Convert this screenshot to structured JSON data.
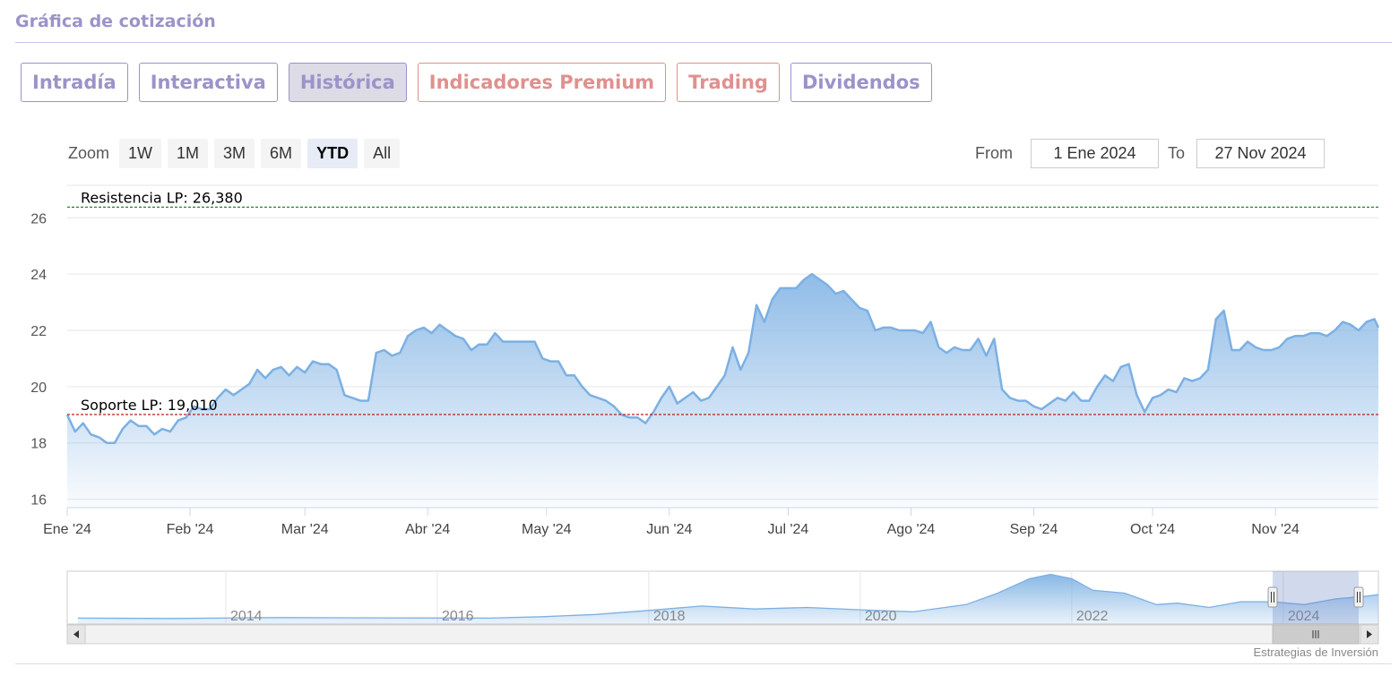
{
  "header": {
    "title": "Gráfica de cotización"
  },
  "tabs": [
    {
      "label": "Intradía",
      "state": "normal"
    },
    {
      "label": "Interactiva",
      "state": "normal"
    },
    {
      "label": "Histórica",
      "state": "active"
    },
    {
      "label": "Indicadores Premium",
      "state": "premium"
    },
    {
      "label": "Trading",
      "state": "premium"
    },
    {
      "label": "Dividendos",
      "state": "normal"
    }
  ],
  "toolbar": {
    "zoom_label": "Zoom",
    "zoom_buttons": [
      "1W",
      "1M",
      "3M",
      "6M",
      "YTD",
      "All"
    ],
    "zoom_selected": "YTD",
    "from_label": "From",
    "from_value": "1 Ene 2024",
    "to_label": "To",
    "to_value": "27 Nov 2024"
  },
  "credit": "Estrategias de Inversión",
  "colors": {
    "accent": "#9b93c9",
    "premium": "#e0908e",
    "series": "#7cb0e3",
    "resistance": "#2e7d32",
    "support": "#b71c1c"
  },
  "chart_data": {
    "type": "area",
    "ylim": [
      15.7,
      26.9
    ],
    "yticks": [
      16,
      18,
      20,
      22,
      24,
      26
    ],
    "xlim": [
      "2024-01-01",
      "2024-11-27"
    ],
    "x_ticks": [
      {
        "label": "Ene '24",
        "date": "2024-01-01"
      },
      {
        "label": "Feb '24",
        "date": "2024-02-01"
      },
      {
        "label": "Mar '24",
        "date": "2024-03-01"
      },
      {
        "label": "Abr '24",
        "date": "2024-04-01"
      },
      {
        "label": "May '24",
        "date": "2024-05-01"
      },
      {
        "label": "Jun '24",
        "date": "2024-06-01"
      },
      {
        "label": "Jul '24",
        "date": "2024-07-01"
      },
      {
        "label": "Ago '24",
        "date": "2024-08-01"
      },
      {
        "label": "Sep '24",
        "date": "2024-09-01"
      },
      {
        "label": "Oct '24",
        "date": "2024-10-01"
      },
      {
        "label": "Nov '24",
        "date": "2024-11-01"
      }
    ],
    "series": [
      {
        "points": [
          [
            "2024-01-01",
            19.0
          ],
          [
            "2024-01-03",
            18.4
          ],
          [
            "2024-01-05",
            18.7
          ],
          [
            "2024-01-07",
            18.3
          ],
          [
            "2024-01-09",
            18.2
          ],
          [
            "2024-01-11",
            18.0
          ],
          [
            "2024-01-13",
            18.0
          ],
          [
            "2024-01-15",
            18.5
          ],
          [
            "2024-01-17",
            18.8
          ],
          [
            "2024-01-19",
            18.6
          ],
          [
            "2024-01-21",
            18.6
          ],
          [
            "2024-01-23",
            18.3
          ],
          [
            "2024-01-25",
            18.5
          ],
          [
            "2024-01-27",
            18.4
          ],
          [
            "2024-01-29",
            18.8
          ],
          [
            "2024-01-31",
            18.9
          ],
          [
            "2024-02-02",
            19.3
          ],
          [
            "2024-02-04",
            19.2
          ],
          [
            "2024-02-06",
            19.2
          ],
          [
            "2024-02-08",
            19.6
          ],
          [
            "2024-02-10",
            19.9
          ],
          [
            "2024-02-12",
            19.7
          ],
          [
            "2024-02-14",
            19.9
          ],
          [
            "2024-02-16",
            20.1
          ],
          [
            "2024-02-18",
            20.6
          ],
          [
            "2024-02-20",
            20.3
          ],
          [
            "2024-02-22",
            20.6
          ],
          [
            "2024-02-24",
            20.7
          ],
          [
            "2024-02-26",
            20.4
          ],
          [
            "2024-02-28",
            20.7
          ],
          [
            "2024-03-01",
            20.5
          ],
          [
            "2024-03-03",
            20.9
          ],
          [
            "2024-03-05",
            20.8
          ],
          [
            "2024-03-07",
            20.8
          ],
          [
            "2024-03-09",
            20.6
          ],
          [
            "2024-03-11",
            19.7
          ],
          [
            "2024-03-13",
            19.6
          ],
          [
            "2024-03-15",
            19.5
          ],
          [
            "2024-03-17",
            19.5
          ],
          [
            "2024-03-19",
            21.2
          ],
          [
            "2024-03-21",
            21.3
          ],
          [
            "2024-03-23",
            21.1
          ],
          [
            "2024-03-25",
            21.2
          ],
          [
            "2024-03-27",
            21.8
          ],
          [
            "2024-03-29",
            22.0
          ],
          [
            "2024-03-31",
            22.1
          ],
          [
            "2024-04-02",
            21.9
          ],
          [
            "2024-04-04",
            22.2
          ],
          [
            "2024-04-06",
            22.0
          ],
          [
            "2024-04-08",
            21.8
          ],
          [
            "2024-04-10",
            21.7
          ],
          [
            "2024-04-12",
            21.3
          ],
          [
            "2024-04-14",
            21.5
          ],
          [
            "2024-04-16",
            21.5
          ],
          [
            "2024-04-18",
            21.9
          ],
          [
            "2024-04-20",
            21.6
          ],
          [
            "2024-04-22",
            21.6
          ],
          [
            "2024-04-24",
            21.6
          ],
          [
            "2024-04-26",
            21.6
          ],
          [
            "2024-04-28",
            21.6
          ],
          [
            "2024-04-30",
            21.0
          ],
          [
            "2024-05-02",
            20.9
          ],
          [
            "2024-05-04",
            20.9
          ],
          [
            "2024-05-06",
            20.4
          ],
          [
            "2024-05-08",
            20.4
          ],
          [
            "2024-05-10",
            20.0
          ],
          [
            "2024-05-12",
            19.7
          ],
          [
            "2024-05-14",
            19.6
          ],
          [
            "2024-05-16",
            19.5
          ],
          [
            "2024-05-18",
            19.3
          ],
          [
            "2024-05-20",
            19.0
          ],
          [
            "2024-05-22",
            18.9
          ],
          [
            "2024-05-24",
            18.9
          ],
          [
            "2024-05-26",
            18.7
          ],
          [
            "2024-05-28",
            19.1
          ],
          [
            "2024-05-30",
            19.6
          ],
          [
            "2024-06-01",
            20.0
          ],
          [
            "2024-06-03",
            19.4
          ],
          [
            "2024-06-05",
            19.6
          ],
          [
            "2024-06-07",
            19.8
          ],
          [
            "2024-06-09",
            19.5
          ],
          [
            "2024-06-11",
            19.6
          ],
          [
            "2024-06-13",
            20.0
          ],
          [
            "2024-06-15",
            20.4
          ],
          [
            "2024-06-17",
            21.4
          ],
          [
            "2024-06-19",
            20.6
          ],
          [
            "2024-06-21",
            21.2
          ],
          [
            "2024-06-23",
            22.9
          ],
          [
            "2024-06-25",
            22.3
          ],
          [
            "2024-06-27",
            23.1
          ],
          [
            "2024-06-29",
            23.5
          ],
          [
            "2024-07-01",
            23.5
          ],
          [
            "2024-07-03",
            23.5
          ],
          [
            "2024-07-05",
            23.8
          ],
          [
            "2024-07-07",
            24.0
          ],
          [
            "2024-07-09",
            23.8
          ],
          [
            "2024-07-11",
            23.6
          ],
          [
            "2024-07-13",
            23.3
          ],
          [
            "2024-07-15",
            23.4
          ],
          [
            "2024-07-17",
            23.1
          ],
          [
            "2024-07-19",
            22.8
          ],
          [
            "2024-07-21",
            22.7
          ],
          [
            "2024-07-23",
            22.0
          ],
          [
            "2024-07-25",
            22.1
          ],
          [
            "2024-07-27",
            22.1
          ],
          [
            "2024-07-29",
            22.0
          ],
          [
            "2024-07-31",
            22.0
          ],
          [
            "2024-08-02",
            22.0
          ],
          [
            "2024-08-04",
            21.9
          ],
          [
            "2024-08-06",
            22.3
          ],
          [
            "2024-08-08",
            21.4
          ],
          [
            "2024-08-10",
            21.2
          ],
          [
            "2024-08-12",
            21.4
          ],
          [
            "2024-08-14",
            21.3
          ],
          [
            "2024-08-16",
            21.3
          ],
          [
            "2024-08-18",
            21.7
          ],
          [
            "2024-08-20",
            21.1
          ],
          [
            "2024-08-22",
            21.7
          ],
          [
            "2024-08-24",
            19.9
          ],
          [
            "2024-08-26",
            19.6
          ],
          [
            "2024-08-28",
            19.5
          ],
          [
            "2024-08-30",
            19.5
          ],
          [
            "2024-09-01",
            19.3
          ],
          [
            "2024-09-03",
            19.2
          ],
          [
            "2024-09-05",
            19.4
          ],
          [
            "2024-09-07",
            19.6
          ],
          [
            "2024-09-09",
            19.5
          ],
          [
            "2024-09-11",
            19.8
          ],
          [
            "2024-09-13",
            19.5
          ],
          [
            "2024-09-15",
            19.5
          ],
          [
            "2024-09-17",
            20.0
          ],
          [
            "2024-09-19",
            20.4
          ],
          [
            "2024-09-21",
            20.2
          ],
          [
            "2024-09-23",
            20.7
          ],
          [
            "2024-09-25",
            20.8
          ],
          [
            "2024-09-27",
            19.7
          ],
          [
            "2024-09-29",
            19.1
          ],
          [
            "2024-10-01",
            19.6
          ],
          [
            "2024-10-03",
            19.7
          ],
          [
            "2024-10-05",
            19.9
          ],
          [
            "2024-10-07",
            19.8
          ],
          [
            "2024-10-09",
            20.3
          ],
          [
            "2024-10-11",
            20.2
          ],
          [
            "2024-10-13",
            20.3
          ],
          [
            "2024-10-15",
            20.6
          ],
          [
            "2024-10-17",
            22.4
          ],
          [
            "2024-10-19",
            22.7
          ],
          [
            "2024-10-21",
            21.3
          ],
          [
            "2024-10-23",
            21.3
          ],
          [
            "2024-10-25",
            21.6
          ],
          [
            "2024-10-27",
            21.4
          ],
          [
            "2024-10-29",
            21.3
          ],
          [
            "2024-10-31",
            21.3
          ],
          [
            "2024-11-02",
            21.4
          ],
          [
            "2024-11-04",
            21.7
          ],
          [
            "2024-11-06",
            21.8
          ],
          [
            "2024-11-08",
            21.8
          ],
          [
            "2024-11-10",
            21.9
          ],
          [
            "2024-11-12",
            21.9
          ],
          [
            "2024-11-14",
            21.8
          ],
          [
            "2024-11-16",
            22.0
          ],
          [
            "2024-11-18",
            22.3
          ],
          [
            "2024-11-20",
            22.2
          ],
          [
            "2024-11-22",
            22.0
          ],
          [
            "2024-11-24",
            22.3
          ],
          [
            "2024-11-26",
            22.4
          ],
          [
            "2024-11-27",
            22.1
          ]
        ]
      }
    ],
    "annotations": [
      {
        "label": "Resistencia LP: 26,380",
        "value": 26.38,
        "color": "#2e7d32"
      },
      {
        "label": "Soporte LP: 19,010",
        "value": 19.01,
        "color": "#b71c1c"
      }
    ],
    "navigator": {
      "labels": [
        "2014",
        "2016",
        "2018",
        "2020",
        "2022",
        "2024"
      ],
      "range": [
        2012.5,
        2024.9
      ],
      "selection": [
        2023.9,
        2024.9
      ],
      "points": [
        [
          2012.6,
          16.3
        ],
        [
          2013.5,
          16.2
        ],
        [
          2014.5,
          16.5
        ],
        [
          2015.5,
          16.4
        ],
        [
          2016.5,
          16.3
        ],
        [
          2017.0,
          16.8
        ],
        [
          2017.5,
          17.6
        ],
        [
          2018.0,
          19.0
        ],
        [
          2018.5,
          20.5
        ],
        [
          2019.0,
          19.5
        ],
        [
          2019.5,
          20.0
        ],
        [
          2020.0,
          19.2
        ],
        [
          2020.5,
          18.5
        ],
        [
          2021.0,
          21.0
        ],
        [
          2021.3,
          25.0
        ],
        [
          2021.6,
          30.0
        ],
        [
          2021.8,
          31.5
        ],
        [
          2022.0,
          30.0
        ],
        [
          2022.2,
          26.0
        ],
        [
          2022.5,
          25.0
        ],
        [
          2022.8,
          21.0
        ],
        [
          2023.0,
          21.5
        ],
        [
          2023.3,
          20.0
        ],
        [
          2023.6,
          22.0
        ],
        [
          2023.9,
          22.0
        ],
        [
          2024.2,
          21.0
        ],
        [
          2024.5,
          23.0
        ],
        [
          2024.8,
          24.0
        ],
        [
          2024.9,
          24.5
        ]
      ]
    }
  }
}
